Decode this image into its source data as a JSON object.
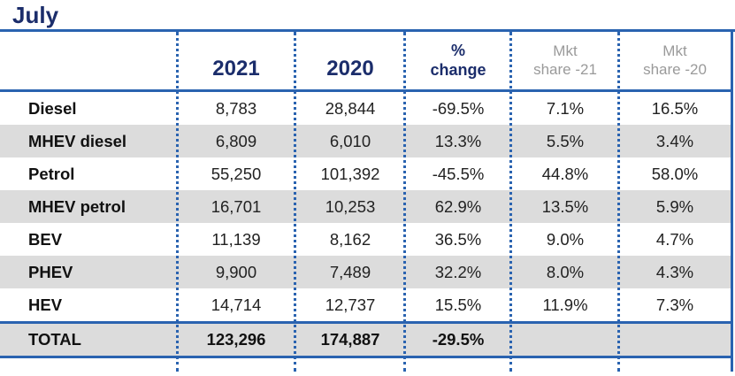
{
  "chart_data": {
    "type": "table",
    "title": "July",
    "columns": [
      "",
      "2021",
      "2020",
      "% change",
      "Mkt share -21",
      "Mkt share -20"
    ],
    "header_lines": {
      "pct": [
        "%",
        "change"
      ],
      "mkt21": [
        "Mkt",
        "share -21"
      ],
      "mkt20": [
        "Mkt",
        "share -20"
      ]
    },
    "rows": [
      {
        "label": "Diesel",
        "y2021": "8,783",
        "y2020": "28,844",
        "change": "-69.5%",
        "share21": "7.1%",
        "share20": "16.5%"
      },
      {
        "label": "MHEV diesel",
        "y2021": "6,809",
        "y2020": "6,010",
        "change": "13.3%",
        "share21": "5.5%",
        "share20": "3.4%"
      },
      {
        "label": "Petrol",
        "y2021": "55,250",
        "y2020": "101,392",
        "change": "-45.5%",
        "share21": "44.8%",
        "share20": "58.0%"
      },
      {
        "label": "MHEV petrol",
        "y2021": "16,701",
        "y2020": "10,253",
        "change": "62.9%",
        "share21": "13.5%",
        "share20": "5.9%"
      },
      {
        "label": "BEV",
        "y2021": "11,139",
        "y2020": "8,162",
        "change": "36.5%",
        "share21": "9.0%",
        "share20": "4.7%"
      },
      {
        "label": "PHEV",
        "y2021": "9,900",
        "y2020": "7,489",
        "change": "32.2%",
        "share21": "8.0%",
        "share20": "4.3%"
      },
      {
        "label": "HEV",
        "y2021": "14,714",
        "y2020": "12,737",
        "change": "15.5%",
        "share21": "11.9%",
        "share20": "7.3%"
      }
    ],
    "total": {
      "label": "TOTAL",
      "y2021": "123,296",
      "y2020": "174,887",
      "change": "-29.5%",
      "share21": "",
      "share20": ""
    }
  },
  "colors": {
    "accent": "#2a63b0",
    "title": "#1b2d6b",
    "shade": "#dcdcdc",
    "muted": "#9a9a9a"
  }
}
